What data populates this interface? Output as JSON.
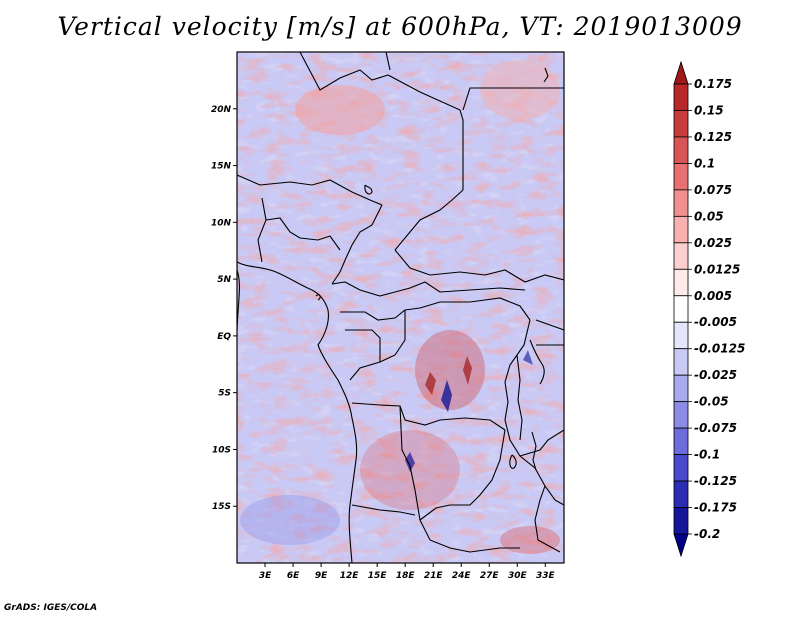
{
  "title": "Vertical velocity [m/s] at 600hPa, VT: 2019013009",
  "footer": "GrADS: IGES/COLA",
  "map": {
    "lon_ticks": [
      "3E",
      "6E",
      "9E",
      "12E",
      "15E",
      "18E",
      "21E",
      "24E",
      "27E",
      "30E",
      "33E"
    ],
    "lat_ticks": [
      "20N",
      "15N",
      "10N",
      "5N",
      "EQ",
      "5S",
      "10S",
      "15S"
    ],
    "lon_range": [
      0,
      35
    ],
    "lat_range": [
      -20,
      25
    ]
  },
  "colorbar": {
    "levels": [
      "0.175",
      "0.15",
      "0.125",
      "0.1",
      "0.075",
      "0.05",
      "0.025",
      "0.0125",
      "0.005",
      "-0.005",
      "-0.0125",
      "-0.025",
      "-0.05",
      "-0.075",
      "-0.1",
      "-0.125",
      "-0.175",
      "-0.2"
    ],
    "colors": [
      "#a01818",
      "#b82828",
      "#c83c3c",
      "#d85555",
      "#e87070",
      "#f09090",
      "#f8b0b0",
      "#fcd0d0",
      "#ffeaea",
      "#ffffff",
      "#e6e6fb",
      "#c9c9f5",
      "#aaaaee",
      "#8c8ce6",
      "#6c6cdc",
      "#4a4acc",
      "#2c2cb4",
      "#16169a",
      "#00008a"
    ]
  }
}
